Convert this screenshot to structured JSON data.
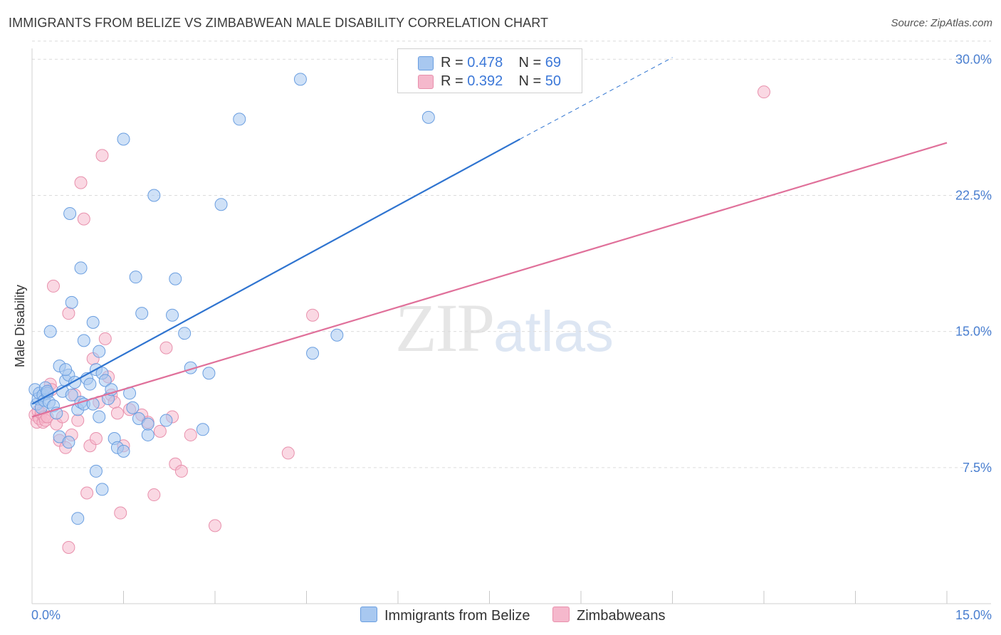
{
  "title": "IMMIGRANTS FROM BELIZE VS ZIMBABWEAN MALE DISABILITY CORRELATION CHART",
  "source": "Source: ZipAtlas.com",
  "watermark": {
    "zip": "ZIP",
    "atlas": "atlas"
  },
  "legend": {
    "r_label": "R =",
    "n_label": "N =",
    "series1": {
      "r": "0.478",
      "n": "69"
    },
    "series2": {
      "r": "0.392",
      "n": "50"
    }
  },
  "colors": {
    "blue_fill": "#a8c8f0",
    "blue_stroke": "#6a9ee0",
    "blue_line": "#2f74d0",
    "pink_fill": "#f5b8cc",
    "pink_stroke": "#e890ac",
    "pink_line": "#e0709a"
  },
  "chart_data": {
    "type": "scatter",
    "title": "IMMIGRANTS FROM BELIZE VS ZIMBABWEAN MALE DISABILITY CORRELATION CHART",
    "xlabel": "",
    "ylabel": "Male Disability",
    "xlim": [
      0,
      15
    ],
    "ylim": [
      0,
      30.6
    ],
    "x_tick_labels": [
      "0.0%",
      "15.0%"
    ],
    "y_ticks": [
      7.5,
      15.0,
      22.5,
      30.0
    ],
    "y_tick_labels": [
      "7.5%",
      "15.0%",
      "22.5%",
      "30.0%"
    ],
    "series": [
      {
        "name": "Immigrants from Belize",
        "r": 0.478,
        "n": 69,
        "trend": {
          "x0": 0.0,
          "y0": 11.0,
          "x1": 8.0,
          "y1": 25.6,
          "dash_to_x": 10.5,
          "dash_to_y": 30.1
        },
        "points": [
          [
            0.05,
            11.8
          ],
          [
            0.08,
            11.0
          ],
          [
            0.1,
            11.3
          ],
          [
            0.12,
            11.6
          ],
          [
            0.15,
            10.8
          ],
          [
            0.18,
            11.5
          ],
          [
            0.2,
            11.2
          ],
          [
            0.22,
            11.9
          ],
          [
            0.25,
            11.6
          ],
          [
            0.28,
            11.1
          ],
          [
            0.3,
            15.0
          ],
          [
            0.35,
            10.9
          ],
          [
            0.4,
            10.5
          ],
          [
            0.45,
            13.1
          ],
          [
            0.5,
            11.7
          ],
          [
            0.55,
            12.3
          ],
          [
            0.6,
            12.6
          ],
          [
            0.62,
            21.5
          ],
          [
            0.65,
            16.6
          ],
          [
            0.7,
            12.2
          ],
          [
            0.75,
            10.7
          ],
          [
            0.8,
            11.1
          ],
          [
            0.85,
            11.0
          ],
          [
            0.9,
            12.4
          ],
          [
            0.75,
            4.7
          ],
          [
            0.8,
            18.5
          ],
          [
            0.85,
            14.5
          ],
          [
            0.95,
            12.1
          ],
          [
            1.0,
            11.0
          ],
          [
            1.05,
            12.9
          ],
          [
            1.1,
            13.9
          ],
          [
            1.15,
            12.7
          ],
          [
            1.2,
            12.3
          ],
          [
            1.25,
            11.3
          ],
          [
            1.3,
            11.8
          ],
          [
            1.35,
            9.1
          ],
          [
            1.1,
            10.3
          ],
          [
            1.0,
            15.5
          ],
          [
            1.05,
            7.3
          ],
          [
            1.15,
            6.3
          ],
          [
            1.5,
            25.6
          ],
          [
            1.6,
            11.6
          ],
          [
            1.65,
            10.8
          ],
          [
            1.7,
            18.0
          ],
          [
            1.75,
            10.2
          ],
          [
            1.8,
            16.0
          ],
          [
            1.9,
            9.3
          ],
          [
            2.0,
            22.5
          ],
          [
            2.2,
            10.1
          ],
          [
            2.3,
            15.9
          ],
          [
            2.35,
            17.9
          ],
          [
            2.5,
            14.9
          ],
          [
            2.6,
            13.0
          ],
          [
            2.8,
            9.6
          ],
          [
            2.9,
            12.7
          ],
          [
            3.1,
            22.0
          ],
          [
            3.4,
            26.7
          ],
          [
            4.4,
            28.9
          ],
          [
            4.6,
            13.8
          ],
          [
            5.0,
            14.8
          ],
          [
            6.5,
            26.8
          ],
          [
            0.45,
            9.2
          ],
          [
            0.55,
            12.9
          ],
          [
            0.6,
            8.9
          ],
          [
            1.4,
            8.6
          ],
          [
            1.5,
            8.4
          ],
          [
            1.9,
            9.9
          ],
          [
            0.65,
            11.5
          ],
          [
            0.25,
            11.7
          ]
        ]
      },
      {
        "name": "Zimbabweans",
        "r": 0.392,
        "n": 50,
        "trend": {
          "x0": 0.0,
          "y0": 10.3,
          "x1": 15.0,
          "y1": 25.4
        },
        "points": [
          [
            0.05,
            10.4
          ],
          [
            0.08,
            10.0
          ],
          [
            0.1,
            10.6
          ],
          [
            0.12,
            10.2
          ],
          [
            0.15,
            10.5
          ],
          [
            0.18,
            10.0
          ],
          [
            0.2,
            10.3
          ],
          [
            0.22,
            10.1
          ],
          [
            0.25,
            10.3
          ],
          [
            0.3,
            12.1
          ],
          [
            0.32,
            11.8
          ],
          [
            0.35,
            17.5
          ],
          [
            0.4,
            9.9
          ],
          [
            0.45,
            9.0
          ],
          [
            0.5,
            10.3
          ],
          [
            0.55,
            8.6
          ],
          [
            0.6,
            16.0
          ],
          [
            0.65,
            9.3
          ],
          [
            0.7,
            11.5
          ],
          [
            0.75,
            10.1
          ],
          [
            0.8,
            23.2
          ],
          [
            0.85,
            21.2
          ],
          [
            0.9,
            6.1
          ],
          [
            0.95,
            8.7
          ],
          [
            1.0,
            13.5
          ],
          [
            1.05,
            9.1
          ],
          [
            1.1,
            11.1
          ],
          [
            1.15,
            24.7
          ],
          [
            1.2,
            14.6
          ],
          [
            1.25,
            12.5
          ],
          [
            1.3,
            11.5
          ],
          [
            1.35,
            11.1
          ],
          [
            1.4,
            10.5
          ],
          [
            1.45,
            5.0
          ],
          [
            1.5,
            8.7
          ],
          [
            1.6,
            10.7
          ],
          [
            1.8,
            10.4
          ],
          [
            1.9,
            10.0
          ],
          [
            2.0,
            6.0
          ],
          [
            2.1,
            9.5
          ],
          [
            2.2,
            14.1
          ],
          [
            2.3,
            10.3
          ],
          [
            2.35,
            7.7
          ],
          [
            2.45,
            7.3
          ],
          [
            2.6,
            9.3
          ],
          [
            3.0,
            4.3
          ],
          [
            4.2,
            8.3
          ],
          [
            4.6,
            15.9
          ],
          [
            12.0,
            28.2
          ],
          [
            0.6,
            3.1
          ]
        ]
      }
    ]
  }
}
